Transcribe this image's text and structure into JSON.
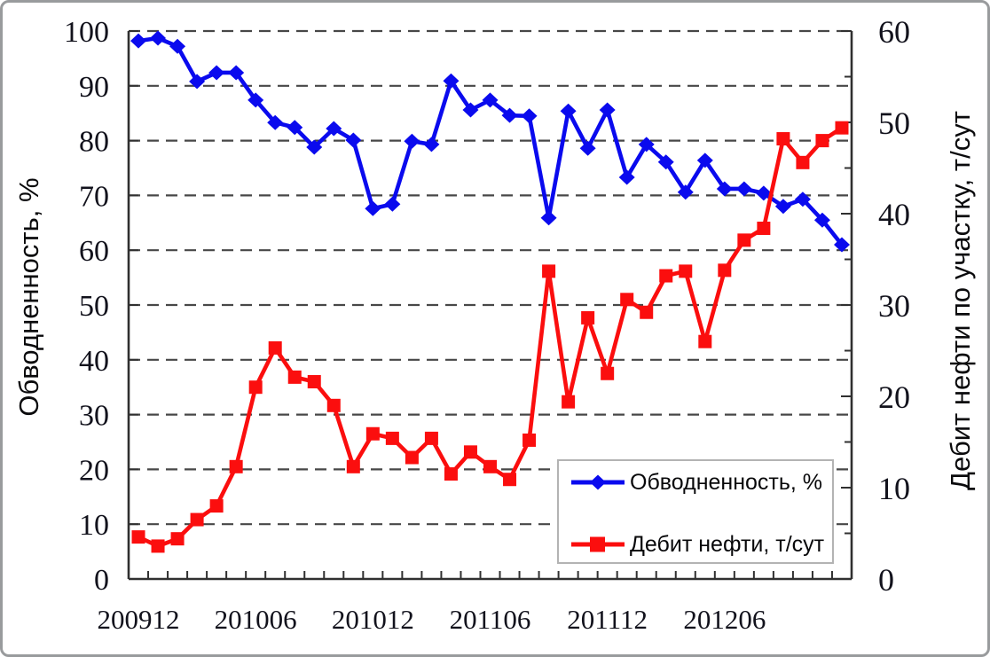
{
  "window": {
    "background": "#ffffff",
    "border_color": "#999b9d"
  },
  "chart_data": {
    "type": "line",
    "title": "",
    "x_categories": [
      "200912",
      "201001",
      "201002",
      "201003",
      "201004",
      "201005",
      "201006",
      "201007",
      "201008",
      "201009",
      "201010",
      "201011",
      "201012",
      "201101",
      "201102",
      "201103",
      "201104",
      "201105",
      "201106",
      "201107",
      "201108",
      "201109",
      "201110",
      "201111",
      "201112",
      "201201",
      "201202",
      "201203",
      "201204",
      "201205",
      "201206",
      "201207",
      "201208",
      "201209",
      "201210",
      "201211",
      "201212"
    ],
    "x_axis": {
      "tick_labels": [
        "200912",
        "201006",
        "201012",
        "201106",
        "201112",
        "201206"
      ],
      "label_month_indices": [
        0,
        6,
        12,
        18,
        24,
        30
      ]
    },
    "left_axis": {
      "title": "Обводненность, %",
      "min": 0,
      "max": 100,
      "step": 10,
      "tick_labels": [
        "0",
        "10",
        "20",
        "30",
        "40",
        "50",
        "60",
        "70",
        "80",
        "90",
        "100"
      ]
    },
    "right_axis": {
      "title": "Дебит нефти по участку, т/сут",
      "min": 0,
      "max": 60,
      "step": 10,
      "minor_step": 5,
      "tick_labels": [
        "0",
        "10",
        "20",
        "30",
        "40",
        "50",
        "60"
      ]
    },
    "grid": {
      "horizontal": "dashed",
      "color": "#474747"
    },
    "series": [
      {
        "name": "Обводненность, %",
        "axis": "left",
        "color": "#0a0aee",
        "marker": "diamond",
        "values": [
          98.2,
          98.7,
          97.2,
          90.8,
          92.4,
          92.4,
          87.4,
          83.3,
          82.4,
          78.8,
          82.2,
          80.1,
          67.6,
          68.4,
          79.9,
          79.3,
          90.9,
          85.6,
          87.4,
          84.6,
          84.5,
          65.9,
          85.4,
          78.6,
          85.6,
          73.3,
          79.3,
          76.1,
          70.6,
          76.4,
          71.2,
          71.2,
          70.4,
          68.0,
          69.3,
          65.5,
          61.0
        ]
      },
      {
        "name": "Дебит нефти, т/сут",
        "axis": "right",
        "color": "#fb0e0e",
        "marker": "square",
        "values": [
          4.6,
          3.6,
          4.4,
          6.5,
          8.0,
          12.3,
          21.0,
          25.3,
          22.1,
          21.6,
          19.0,
          12.3,
          15.9,
          15.4,
          13.3,
          15.4,
          11.5,
          13.9,
          12.3,
          10.9,
          15.2,
          33.7,
          19.4,
          28.6,
          22.5,
          30.6,
          29.2,
          33.2,
          33.7,
          26.0,
          33.8,
          37.1,
          38.4,
          48.2,
          45.6,
          48.0,
          49.4
        ]
      }
    ],
    "legend": {
      "position": "inside-bottom-right",
      "entries": [
        "Обводненность, %",
        "Дебит нефти, т/сут"
      ]
    }
  }
}
